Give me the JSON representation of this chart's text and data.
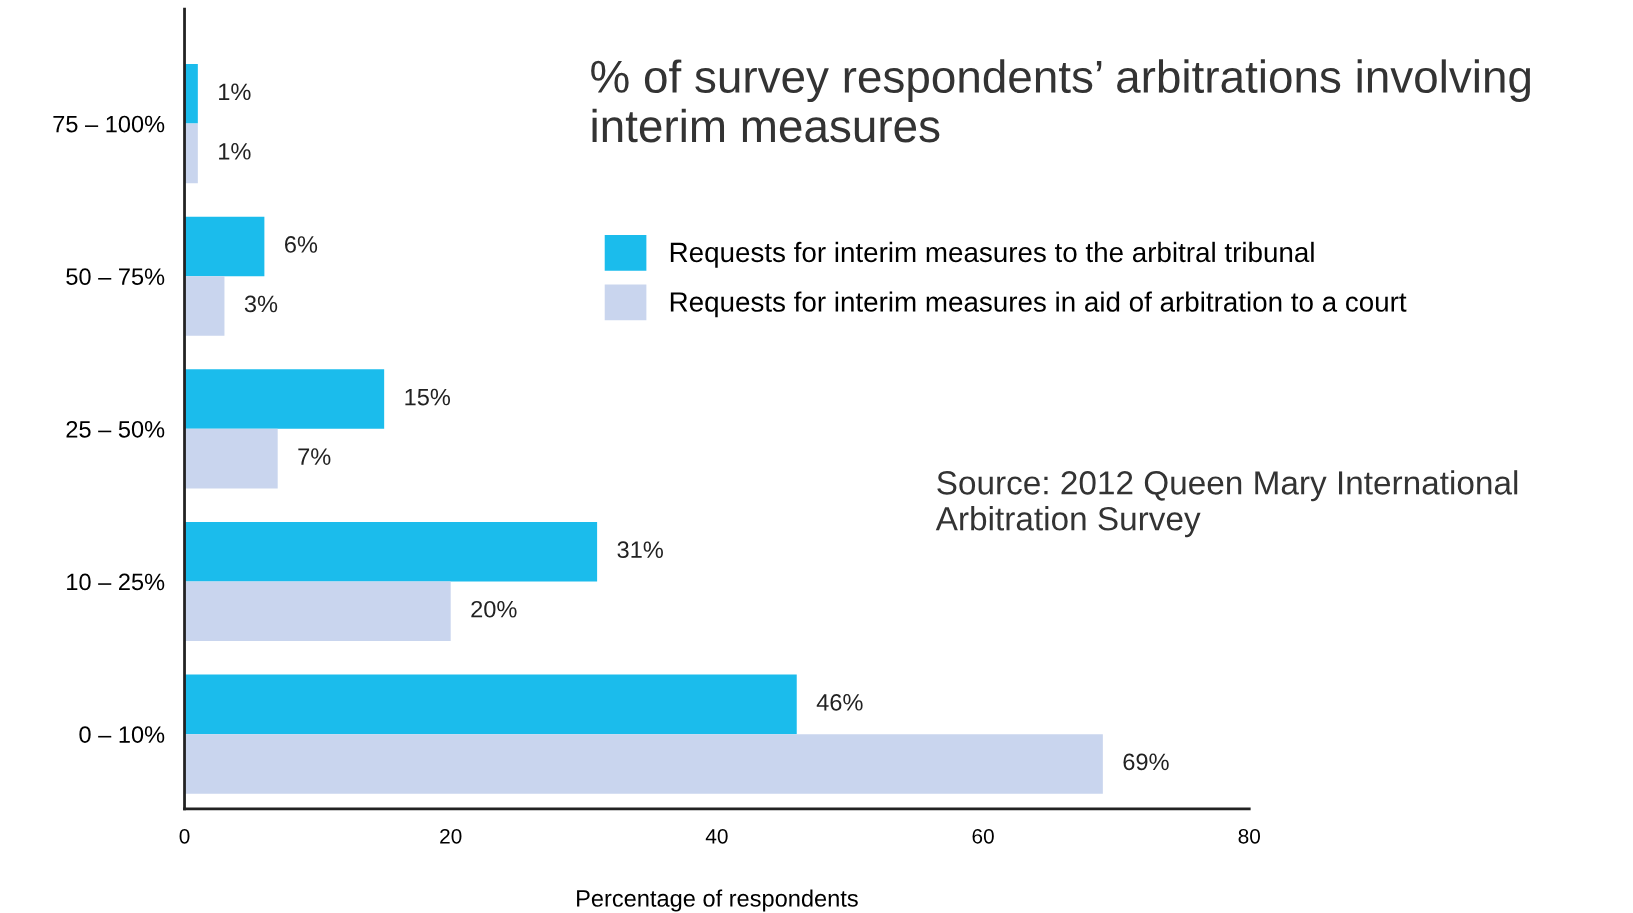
{
  "chart_data": {
    "type": "bar",
    "orientation": "horizontal",
    "title": "% of survey respondents’ arbitrations involving interim measures",
    "xlabel": "Percentage of respondents",
    "categories": [
      "75 – 100%",
      "50 – 75%",
      "25 – 50%",
      "10 – 25%",
      "0 – 10%"
    ],
    "series": [
      {
        "name": "Requests for interim measures to the arbitral tribunal",
        "color": "#1bbcec",
        "values": [
          1,
          6,
          15,
          31,
          46
        ],
        "value_labels": [
          "1%",
          "6%",
          "15%",
          "31%",
          "46%"
        ]
      },
      {
        "name": "Requests for interim measures in aid of arbitration to a court",
        "color": "#c9d5ee",
        "values": [
          1,
          3,
          7,
          20,
          69
        ],
        "value_labels": [
          "1%",
          "3%",
          "7%",
          "20%",
          "69%"
        ]
      }
    ],
    "xlim": [
      0,
      80
    ],
    "xticks": [
      0,
      20,
      40,
      60,
      80
    ],
    "legend": "top right",
    "grid": false,
    "annotations": [
      "Source: 2012 Queen Mary International Arbitration Survey"
    ]
  }
}
